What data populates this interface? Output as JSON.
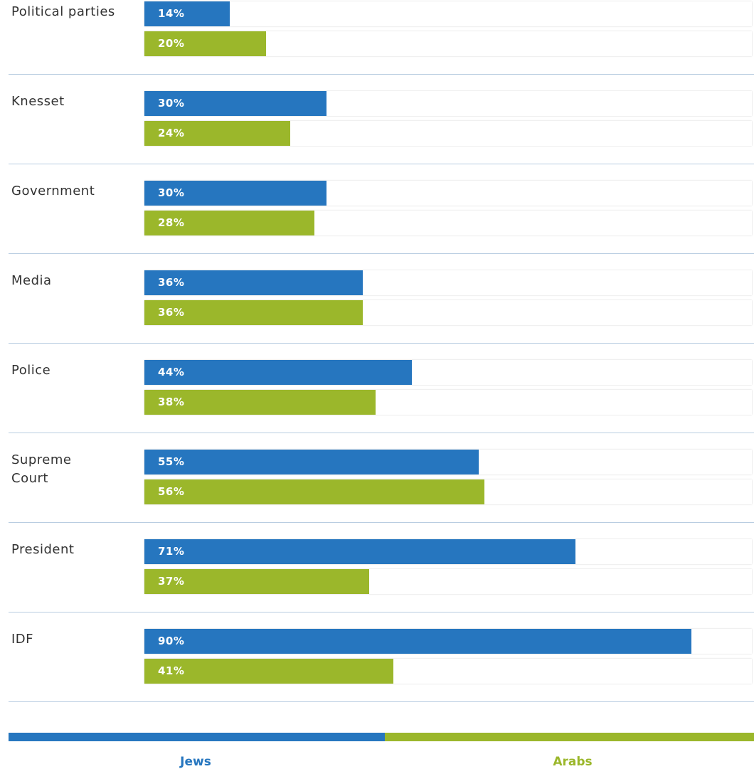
{
  "colors": {
    "jews": "#2676bf",
    "arabs": "#9bb72b"
  },
  "chart_data": {
    "type": "bar",
    "orientation": "horizontal",
    "unit": "%",
    "xlim": [
      0,
      100
    ],
    "categories": [
      "Political parties",
      "Knesset",
      "Government",
      "Media",
      "Police",
      "Supreme Court",
      "President",
      "IDF"
    ],
    "series": [
      {
        "name": "Jews",
        "values": [
          14,
          30,
          30,
          36,
          44,
          55,
          71,
          90
        ],
        "labels": [
          "14%",
          "30%",
          "30%",
          "36%",
          "44%",
          "55%",
          "71%",
          "90%"
        ]
      },
      {
        "name": "Arabs",
        "values": [
          20,
          24,
          28,
          36,
          38,
          56,
          37,
          41
        ],
        "labels": [
          "20%",
          "24%",
          "28%",
          "36%",
          "38%",
          "56%",
          "37%",
          "41%"
        ]
      }
    ],
    "legend": {
      "position": "bottom",
      "items": [
        "Jews",
        "Arabs"
      ]
    }
  }
}
